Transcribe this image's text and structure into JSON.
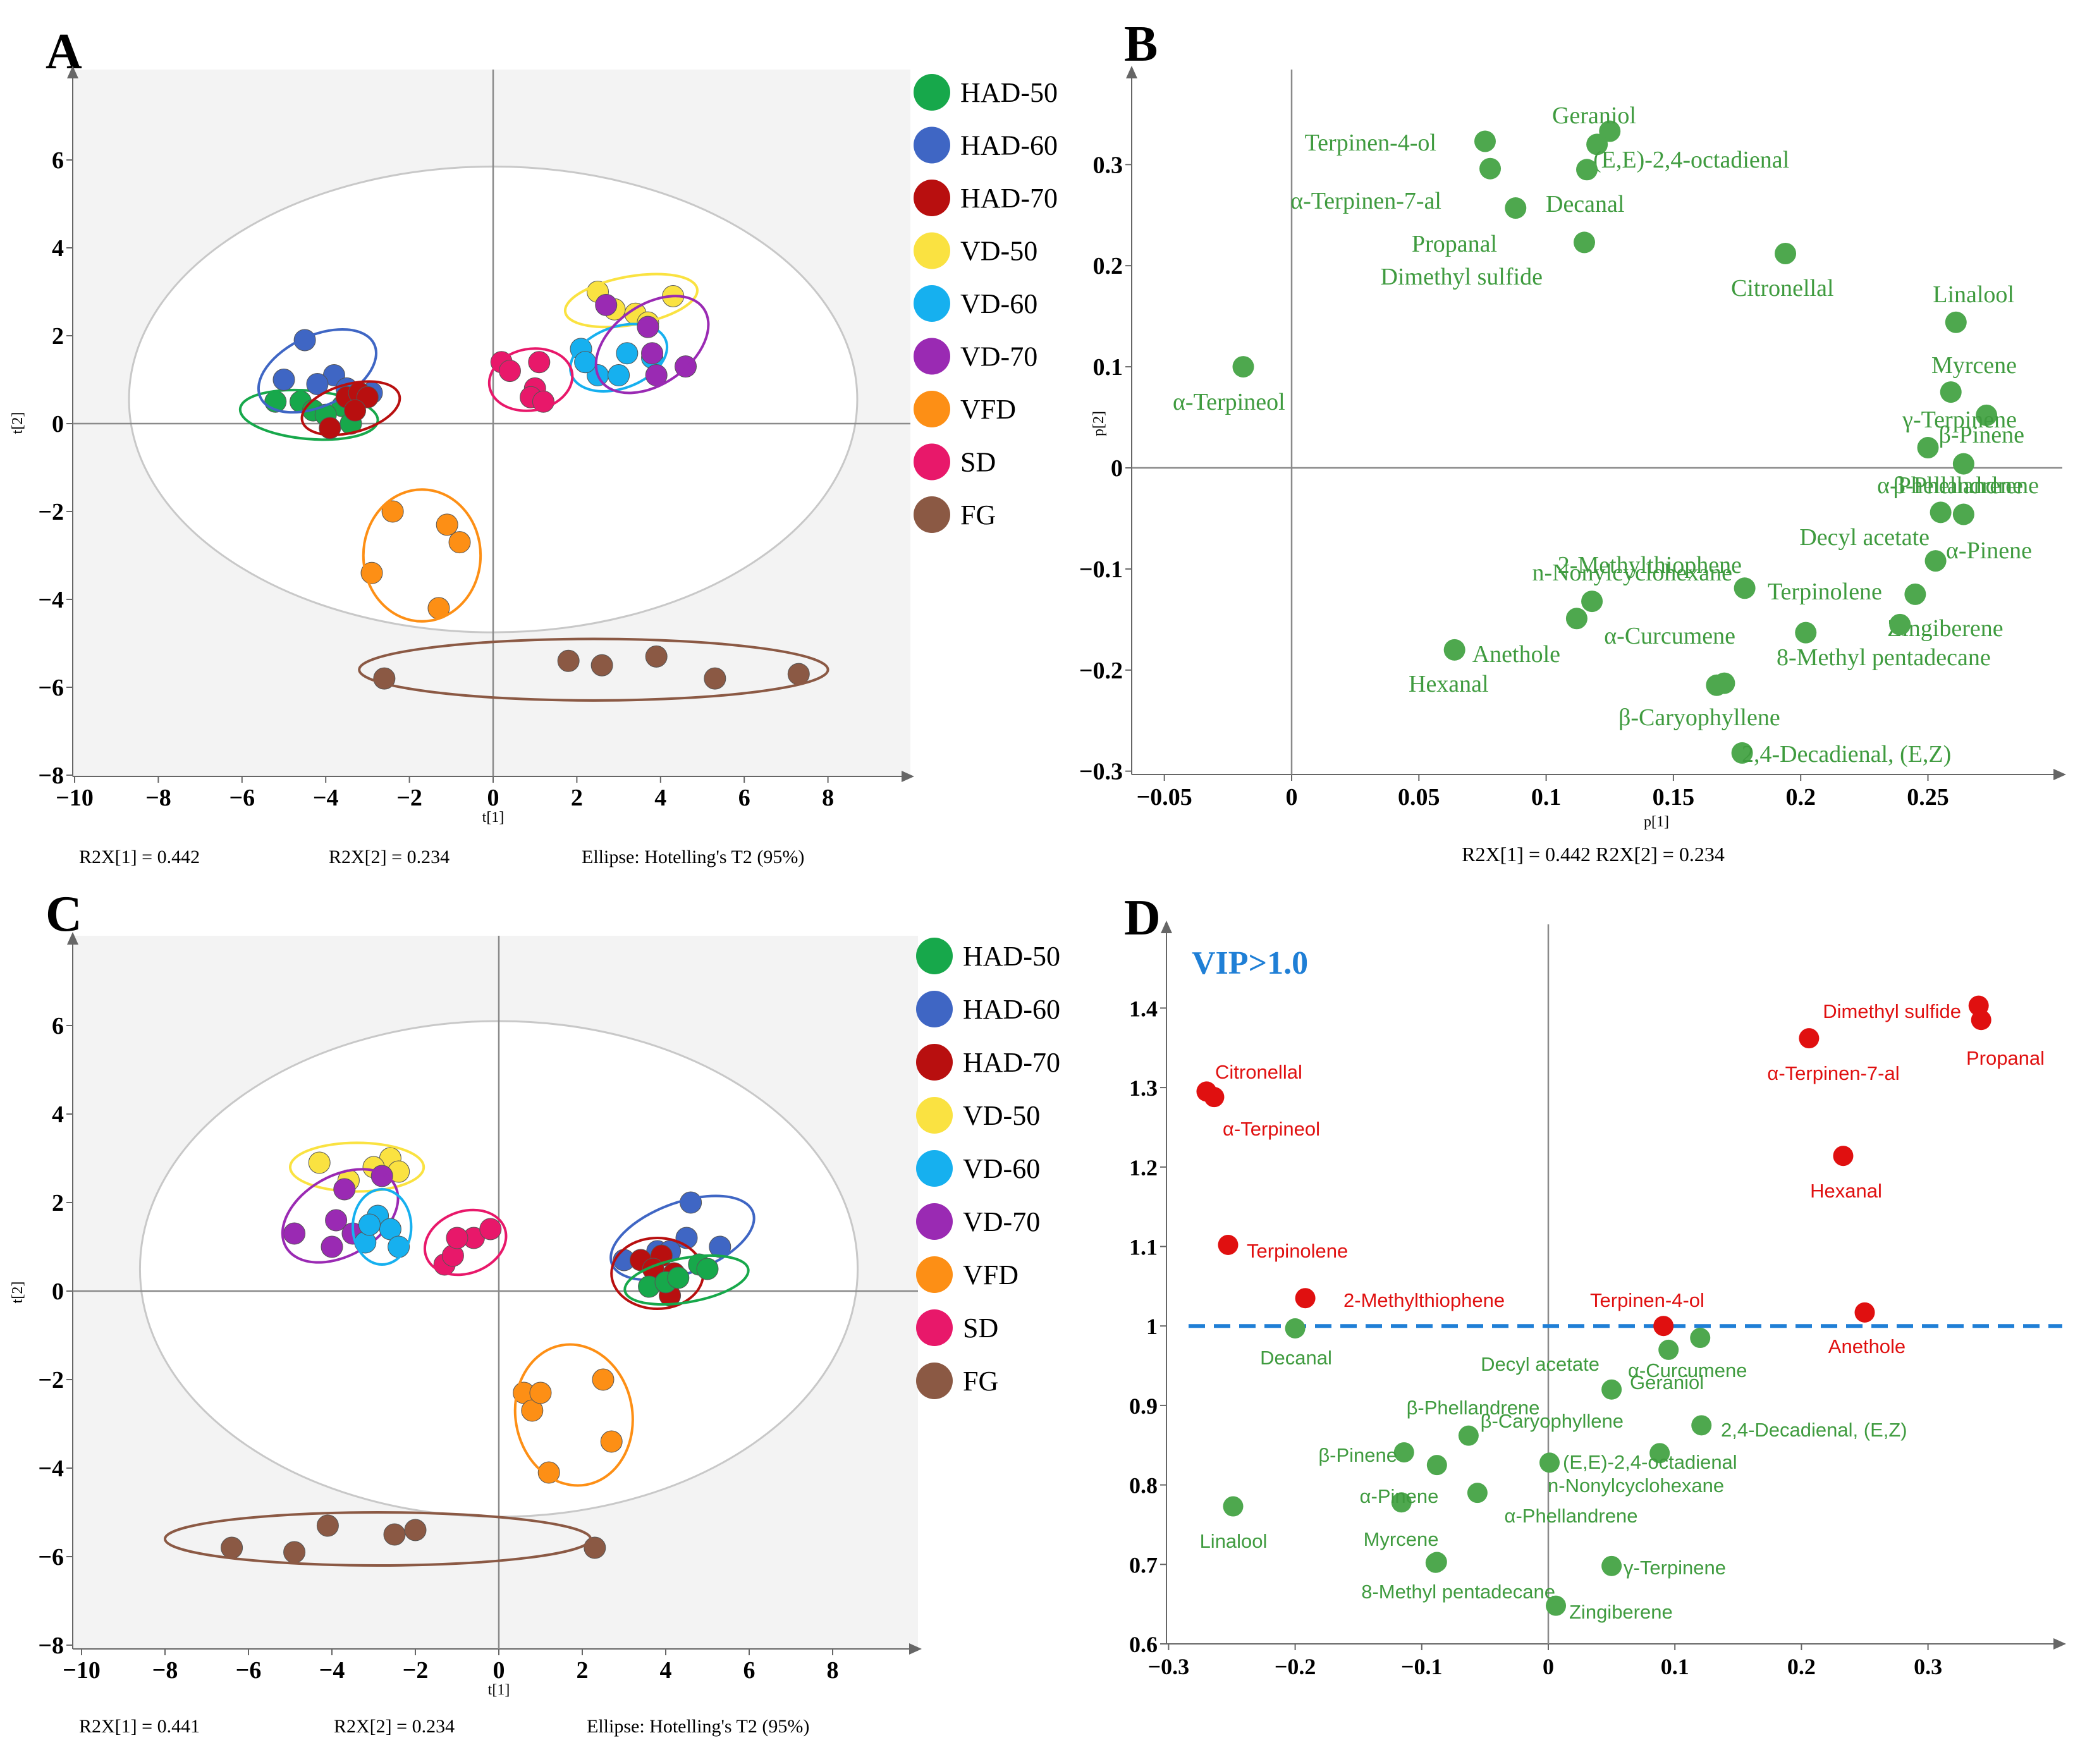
{
  "colors": {
    "HAD-50": "#17a84b",
    "HAD-60": "#3f66c4",
    "HAD-70": "#b80f0f",
    "VD-50": "#fae241",
    "VD-60": "#16b0ef",
    "VD-70": "#9a2ab3",
    "VFD": "#fd8f15",
    "SD": "#e8186a",
    "FG": "#8b5944",
    "green_point": "#4ea84e",
    "green_text": "#3f9b3f",
    "red_point": "#e01010",
    "vip_line": "#1f7fd6",
    "plot_bg": "#f3f3f3"
  },
  "legend": [
    "HAD-50",
    "HAD-60",
    "HAD-70",
    "VD-50",
    "VD-60",
    "VD-70",
    "VFD",
    "SD",
    "FG"
  ],
  "chart_data": [
    {
      "panel": "A",
      "type": "scatter",
      "xlabel": "t[1]",
      "ylabel": "t[2]",
      "xlim": [
        -10,
        10
      ],
      "ylim": [
        -8,
        8
      ],
      "xticks": [
        -10,
        -8,
        -6,
        -4,
        -2,
        0,
        2,
        4,
        6,
        8
      ],
      "yticks": [
        -8,
        -6,
        -4,
        -2,
        0,
        2,
        4,
        6
      ],
      "footer": [
        "R2X[1] = 0.442",
        "R2X[2] = 0.234",
        "Ellipse: Hotelling's T2 (95%)"
      ],
      "hotelling": {
        "cx": 0,
        "cy": 0.55,
        "rx": 8.7,
        "ry": 5.3
      },
      "groups": [
        {
          "name": "HAD-50",
          "points": [
            [
              -5.2,
              0.5
            ],
            [
              -4.6,
              0.5
            ],
            [
              -4.3,
              0.3
            ],
            [
              -3.6,
              0.4
            ],
            [
              -3.4,
              0.0
            ],
            [
              -4.0,
              0.2
            ]
          ],
          "ellipse": {
            "cx": -4.4,
            "cy": 0.2,
            "rx": 1.65,
            "ry": 0.55,
            "rot": 5
          }
        },
        {
          "name": "HAD-60",
          "points": [
            [
              -5.0,
              1.0
            ],
            [
              -4.5,
              1.9
            ],
            [
              -3.8,
              1.1
            ],
            [
              -4.2,
              0.9
            ],
            [
              -3.5,
              0.8
            ],
            [
              -2.9,
              0.7
            ]
          ],
          "ellipse": {
            "cx": -4.2,
            "cy": 1.2,
            "rx": 1.5,
            "ry": 0.8,
            "rot": -25
          }
        },
        {
          "name": "HAD-70",
          "points": [
            [
              -3.9,
              -0.1
            ],
            [
              -3.5,
              0.6
            ],
            [
              -3.2,
              0.7
            ],
            [
              -3.0,
              0.6
            ],
            [
              -3.3,
              0.3
            ]
          ],
          "ellipse": {
            "cx": -3.4,
            "cy": 0.35,
            "rx": 1.2,
            "ry": 0.55,
            "rot": -15
          }
        },
        {
          "name": "VD-50",
          "points": [
            [
              2.5,
              3.0
            ],
            [
              3.4,
              2.5
            ],
            [
              4.3,
              2.9
            ],
            [
              2.9,
              2.6
            ],
            [
              3.7,
              2.3
            ]
          ],
          "ellipse": {
            "cx": 3.3,
            "cy": 2.8,
            "rx": 1.6,
            "ry": 0.55,
            "rot": -10
          }
        },
        {
          "name": "VD-60",
          "points": [
            [
              2.1,
              1.7
            ],
            [
              2.5,
              1.1
            ],
            [
              3.0,
              1.1
            ],
            [
              3.2,
              1.6
            ],
            [
              3.8,
              1.5
            ],
            [
              2.2,
              1.4
            ]
          ],
          "ellipse": {
            "cx": 3.0,
            "cy": 1.5,
            "rx": 1.2,
            "ry": 0.7,
            "rot": -20
          }
        },
        {
          "name": "VD-70",
          "points": [
            [
              2.7,
              2.7
            ],
            [
              3.7,
              2.2
            ],
            [
              3.8,
              1.6
            ],
            [
              3.9,
              1.1
            ],
            [
              4.6,
              1.3
            ]
          ],
          "ellipse": {
            "cx": 3.8,
            "cy": 1.8,
            "rx": 1.5,
            "ry": 0.9,
            "rot": -35
          }
        },
        {
          "name": "SD",
          "points": [
            [
              0.2,
              1.4
            ],
            [
              0.4,
              1.2
            ],
            [
              1.1,
              1.4
            ],
            [
              1.0,
              0.8
            ],
            [
              0.9,
              0.6
            ],
            [
              1.2,
              0.5
            ]
          ],
          "ellipse": {
            "cx": 0.9,
            "cy": 1.0,
            "rx": 1.0,
            "ry": 0.7,
            "rot": -10
          }
        },
        {
          "name": "VFD",
          "points": [
            [
              -2.4,
              -2.0
            ],
            [
              -1.1,
              -2.3
            ],
            [
              -0.8,
              -2.7
            ],
            [
              -2.9,
              -3.4
            ],
            [
              -1.3,
              -4.2
            ]
          ],
          "ellipse": {
            "cx": -1.7,
            "cy": -3.0,
            "rx": 1.4,
            "ry": 1.5,
            "rot": 0
          }
        },
        {
          "name": "FG",
          "points": [
            [
              -2.6,
              -5.8
            ],
            [
              1.8,
              -5.4
            ],
            [
              2.6,
              -5.5
            ],
            [
              3.9,
              -5.3
            ],
            [
              5.3,
              -5.8
            ],
            [
              7.3,
              -5.7
            ]
          ],
          "ellipse": {
            "cx": 2.4,
            "cy": -5.6,
            "rx": 5.6,
            "ry": 0.7,
            "rot": 0
          }
        }
      ]
    },
    {
      "panel": "B",
      "type": "scatter",
      "xlabel": "p[1]",
      "ylabel": "p[2]",
      "xlim": [
        -0.05,
        0.3
      ],
      "ylim": [
        -0.3,
        0.4
      ],
      "xticks": [
        -0.05,
        0,
        0.05,
        0.1,
        0.15,
        0.2,
        0.25
      ],
      "yticks": [
        -0.3,
        -0.2,
        -0.1,
        0,
        0.1,
        0.2,
        0.3
      ],
      "footer": "R2X[1] = 0.442 R2X[2] = 0.234",
      "points": [
        {
          "label": "Geraniol",
          "x": 0.125,
          "y": 0.333
        },
        {
          "label": "(E,E)-2,4-octadienal",
          "x": 0.12,
          "y": 0.32
        },
        {
          "label": "Terpinen-4-ol",
          "x": 0.076,
          "y": 0.323
        },
        {
          "label": "α-Terpinen-7-al",
          "x": 0.078,
          "y": 0.296
        },
        {
          "label": "Decanal",
          "x": 0.116,
          "y": 0.295
        },
        {
          "label": "Propanal",
          "x": 0.088,
          "y": 0.257
        },
        {
          "label": "Dimethyl sulfide",
          "x": 0.115,
          "y": 0.223
        },
        {
          "label": "Citronellal",
          "x": 0.194,
          "y": 0.212
        },
        {
          "label": "Linalool",
          "x": 0.261,
          "y": 0.144
        },
        {
          "label": "α-Terpineol",
          "x": -0.019,
          "y": 0.1
        },
        {
          "label": "Myrcene",
          "x": 0.259,
          "y": 0.075
        },
        {
          "label": "γ-Terpinene",
          "x": 0.273,
          "y": 0.052
        },
        {
          "label": "β-Pinene",
          "x": 0.25,
          "y": 0.02
        },
        {
          "label": "β-Phellandrene",
          "x": 0.264,
          "y": 0.004
        },
        {
          "label": "α-Phellandrene",
          "x": 0.255,
          "y": -0.044
        },
        {
          "label": "Decyl acetate",
          "x": 0.264,
          "y": -0.046
        },
        {
          "label": "α-Pinene",
          "x": 0.253,
          "y": -0.092
        },
        {
          "label": "2-Methylthiophene",
          "x": 0.118,
          "y": -0.132
        },
        {
          "label": "n-Nonylcyclohexane",
          "x": 0.112,
          "y": -0.149
        },
        {
          "label": "Terpinolene",
          "x": 0.178,
          "y": -0.119
        },
        {
          "label": "Zingiberene",
          "x": 0.245,
          "y": -0.125
        },
        {
          "label": "8-Methyl pentadecane",
          "x": 0.239,
          "y": -0.155
        },
        {
          "label": "α-Curcumene",
          "x": 0.202,
          "y": -0.163
        },
        {
          "label": "Anethole",
          "x": 0.17,
          "y": -0.213
        },
        {
          "label": "Hexanal",
          "x": 0.064,
          "y": -0.18
        },
        {
          "label": "β-Caryophyllene",
          "x": 0.167,
          "y": -0.215
        },
        {
          "label": "2,4-Decadienal, (E,Z)",
          "x": 0.177,
          "y": -0.282
        }
      ]
    },
    {
      "panel": "C",
      "type": "scatter",
      "xlabel": "t[1]",
      "ylabel": "t[2]",
      "xlim": [
        -10,
        10
      ],
      "ylim": [
        -8,
        8
      ],
      "xticks": [
        -10,
        -8,
        -6,
        -4,
        -2,
        0,
        2,
        4,
        6,
        8
      ],
      "yticks": [
        -8,
        -6,
        -4,
        -2,
        0,
        2,
        4,
        6
      ],
      "footer": [
        "R2X[1] = 0.441",
        "R2X[2] = 0.234",
        "Ellipse: Hotelling's T2 (95%)"
      ],
      "hotelling": {
        "cx": 0,
        "cy": 0.5,
        "rx": 8.6,
        "ry": 5.6
      },
      "groups": [
        {
          "name": "VD-50",
          "points": [
            [
              -4.3,
              2.9
            ],
            [
              -3.6,
              2.5
            ],
            [
              -2.6,
              3.0
            ],
            [
              -2.4,
              2.7
            ],
            [
              -3.0,
              2.8
            ]
          ],
          "ellipse": {
            "cx": -3.4,
            "cy": 2.8,
            "rx": 1.6,
            "ry": 0.55,
            "rot": 0
          }
        },
        {
          "name": "VD-70",
          "points": [
            [
              -4.9,
              1.3
            ],
            [
              -4.0,
              1.0
            ],
            [
              -3.7,
              2.3
            ],
            [
              -2.8,
              2.6
            ],
            [
              -3.9,
              1.6
            ],
            [
              -3.5,
              1.3
            ]
          ],
          "ellipse": {
            "cx": -3.8,
            "cy": 1.7,
            "rx": 1.5,
            "ry": 0.9,
            "rot": -30
          }
        },
        {
          "name": "VD-60",
          "points": [
            [
              -3.2,
              1.1
            ],
            [
              -2.9,
              1.7
            ],
            [
              -2.6,
              1.4
            ],
            [
              -2.4,
              1.0
            ],
            [
              -3.1,
              1.5
            ]
          ],
          "ellipse": {
            "cx": -2.8,
            "cy": 1.45,
            "rx": 0.7,
            "ry": 0.85,
            "rot": 0
          }
        },
        {
          "name": "SD",
          "points": [
            [
              -1.3,
              0.6
            ],
            [
              -1.1,
              0.8
            ],
            [
              -0.6,
              1.2
            ],
            [
              -0.2,
              1.4
            ],
            [
              -1.0,
              1.2
            ]
          ],
          "ellipse": {
            "cx": -0.8,
            "cy": 1.1,
            "rx": 1.0,
            "ry": 0.7,
            "rot": -20
          }
        },
        {
          "name": "HAD-60",
          "points": [
            [
              3.0,
              0.7
            ],
            [
              3.8,
              0.9
            ],
            [
              4.5,
              1.2
            ],
            [
              4.6,
              2.0
            ],
            [
              5.3,
              1.0
            ],
            [
              4.1,
              0.9
            ]
          ],
          "ellipse": {
            "cx": 4.4,
            "cy": 1.2,
            "rx": 1.8,
            "ry": 0.8,
            "rot": -20
          }
        },
        {
          "name": "HAD-70",
          "points": [
            [
              3.4,
              0.7
            ],
            [
              3.9,
              0.8
            ],
            [
              3.7,
              0.5
            ],
            [
              4.2,
              0.4
            ],
            [
              4.1,
              -0.1
            ]
          ],
          "ellipse": {
            "cx": 3.8,
            "cy": 0.4,
            "rx": 1.1,
            "ry": 0.8,
            "rot": 0
          }
        },
        {
          "name": "HAD-50",
          "points": [
            [
              3.6,
              0.1
            ],
            [
              4.0,
              0.2
            ],
            [
              4.8,
              0.6
            ],
            [
              5.0,
              0.5
            ],
            [
              4.3,
              0.3
            ]
          ],
          "ellipse": {
            "cx": 4.5,
            "cy": 0.25,
            "rx": 1.5,
            "ry": 0.5,
            "rot": -10
          }
        },
        {
          "name": "VFD",
          "points": [
            [
              0.6,
              -2.3
            ],
            [
              0.8,
              -2.7
            ],
            [
              1.0,
              -2.3
            ],
            [
              1.2,
              -4.1
            ],
            [
              2.5,
              -2.0
            ],
            [
              2.7,
              -3.4
            ]
          ],
          "ellipse": {
            "cx": 1.8,
            "cy": -2.8,
            "rx": 1.4,
            "ry": 1.6,
            "rot": -10
          }
        },
        {
          "name": "FG",
          "points": [
            [
              -6.4,
              -5.8
            ],
            [
              -4.9,
              -5.9
            ],
            [
              -4.1,
              -5.3
            ],
            [
              -2.5,
              -5.5
            ],
            [
              -2.0,
              -5.4
            ],
            [
              2.3,
              -5.8
            ]
          ],
          "ellipse": {
            "cx": -2.9,
            "cy": -5.6,
            "rx": 5.1,
            "ry": 0.6,
            "rot": 0
          }
        }
      ]
    },
    {
      "panel": "D",
      "type": "scatter",
      "annotation": "VIP>1.0",
      "threshold": 1.0,
      "xlim": [
        -0.3,
        0.4
      ],
      "ylim": [
        0.6,
        1.5
      ],
      "xticks": [
        -0.3,
        -0.2,
        -0.1,
        0,
        0.1,
        0.2,
        0.3
      ],
      "yticks": [
        0.6,
        0.7,
        0.8,
        0.9,
        1,
        1.1,
        1.2,
        1.3,
        1.4
      ],
      "points_red": [
        {
          "label": "Dimethyl sulfide",
          "x": 0.34,
          "y": 1.403
        },
        {
          "label": "Propanal",
          "x": 0.342,
          "y": 1.385
        },
        {
          "label": "α-Terpinen-7-al",
          "x": 0.206,
          "y": 1.362
        },
        {
          "label": "Citronellal",
          "x": -0.27,
          "y": 1.295
        },
        {
          "label": "α-Terpineol",
          "x": -0.264,
          "y": 1.288
        },
        {
          "label": "Hexanal",
          "x": 0.233,
          "y": 1.214
        },
        {
          "label": "Terpinolene",
          "x": -0.253,
          "y": 1.102
        },
        {
          "label": "2-Methylthiophene",
          "x": -0.192,
          "y": 1.035
        },
        {
          "label": "Terpinen-4-ol",
          "x": 0.091,
          "y": 1.0
        },
        {
          "label": "Anethole",
          "x": 0.25,
          "y": 1.017
        }
      ],
      "points_green": [
        {
          "label": "Decanal",
          "x": -0.2,
          "y": 0.997
        },
        {
          "label": "Decyl acetate",
          "x": 0.095,
          "y": 0.97
        },
        {
          "label": "α-Curcumene",
          "x": 0.12,
          "y": 0.985
        },
        {
          "label": "Geraniol",
          "x": 0.05,
          "y": 0.92
        },
        {
          "label": "β-Phellandrene",
          "x": -0.063,
          "y": 0.862
        },
        {
          "label": "β-Caryophyllene",
          "x": 0.088,
          "y": 0.84
        },
        {
          "label": "2,4-Decadienal, (E,Z)",
          "x": 0.121,
          "y": 0.875
        },
        {
          "label": "β-Pinene",
          "x": -0.114,
          "y": 0.841
        },
        {
          "label": "(E,E)-2,4-octadienal",
          "x": 0.001,
          "y": 0.828
        },
        {
          "label": "n-Nonylcyclohexane",
          "x": -0.088,
          "y": 0.825
        },
        {
          "label": "α-Pinene",
          "x": -0.116,
          "y": 0.778
        },
        {
          "label": "α-Phellandrene",
          "x": -0.056,
          "y": 0.79
        },
        {
          "label": "Linalool",
          "x": -0.249,
          "y": 0.773
        },
        {
          "label": "Myrcene",
          "x": -0.089,
          "y": 0.702
        },
        {
          "label": "γ-Terpinene",
          "x": 0.05,
          "y": 0.698
        },
        {
          "label": "8-Methyl pentadecane",
          "x": -0.088,
          "y": 0.703
        },
        {
          "label": "Zingiberene",
          "x": 0.006,
          "y": 0.648
        }
      ]
    }
  ],
  "panels": {
    "A": "A",
    "B": "B",
    "C": "C",
    "D": "D"
  }
}
